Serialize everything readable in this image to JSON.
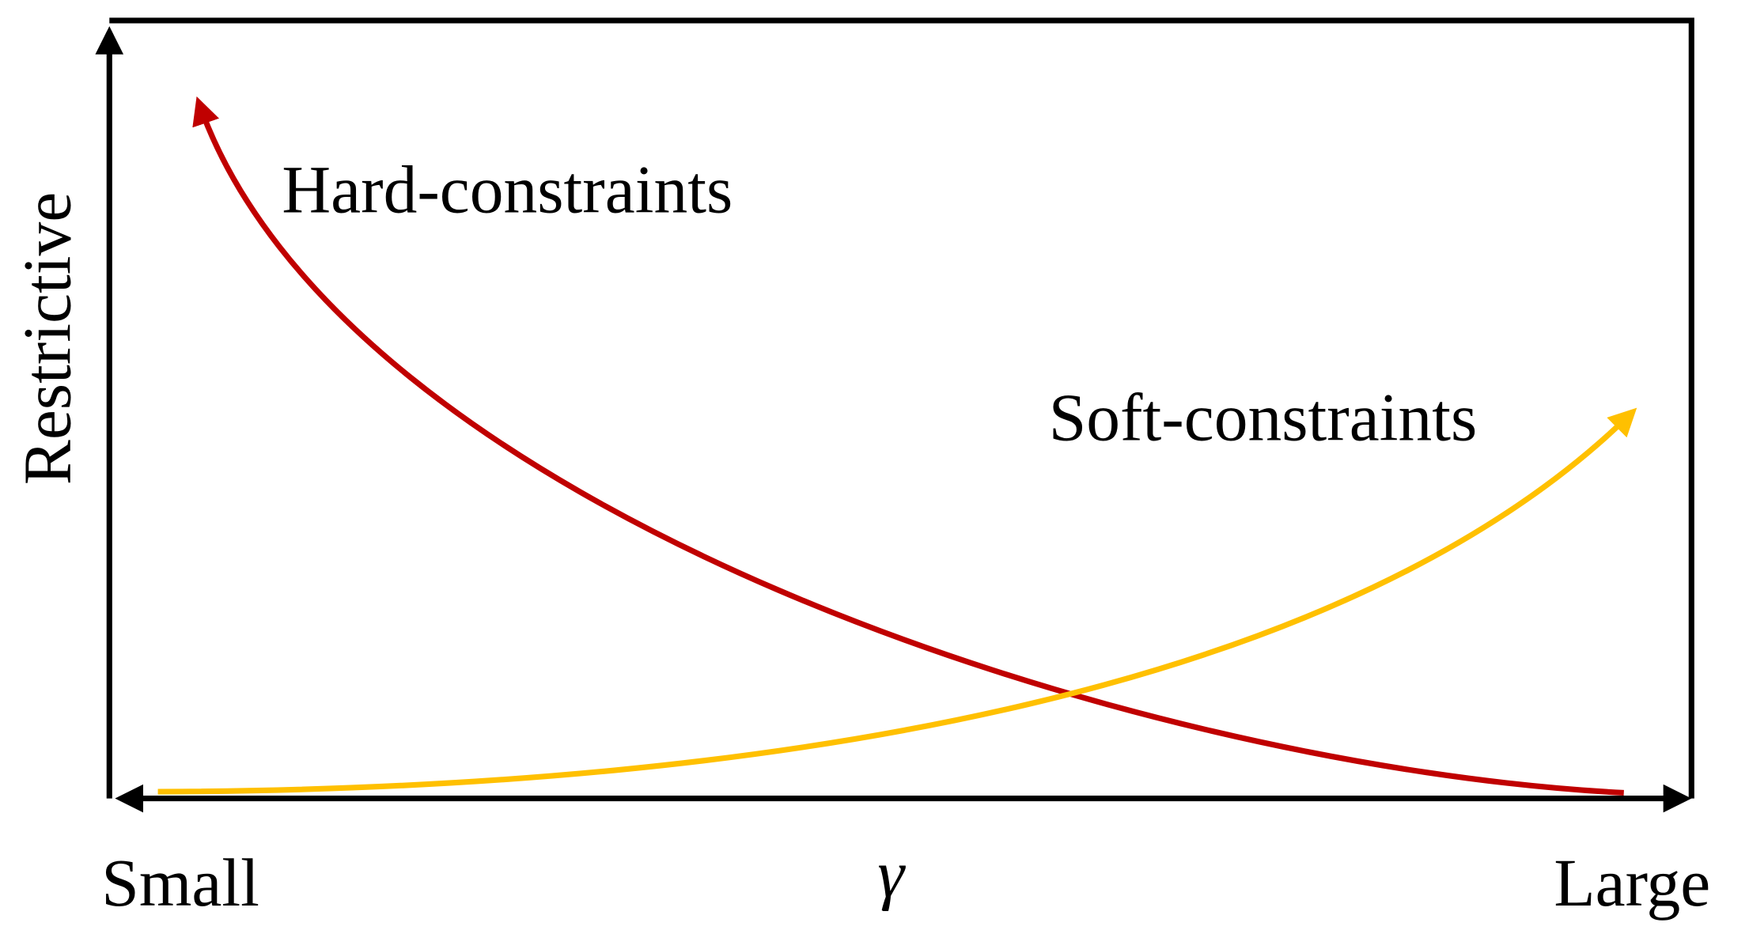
{
  "axes": {
    "y_label": "Restrictive",
    "x_left": "Small",
    "x_center": "γ",
    "x_right": "Large"
  },
  "curves": {
    "hard": "Hard-constraints",
    "soft": "Soft-constraints"
  }
}
